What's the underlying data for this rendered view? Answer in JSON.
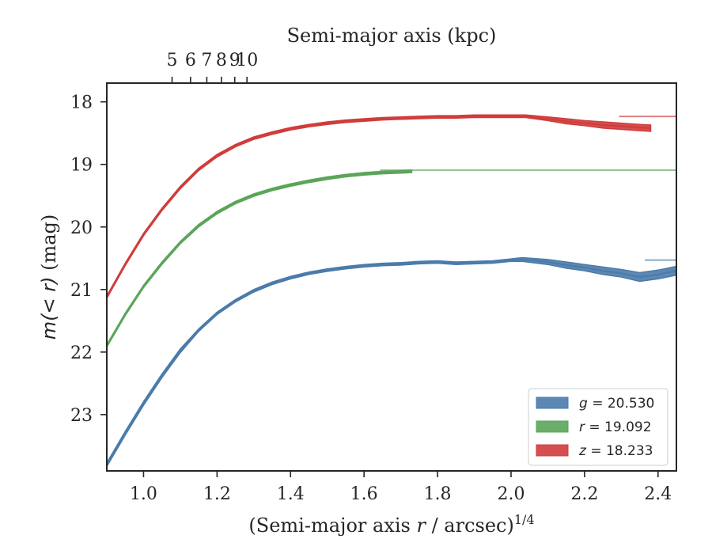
{
  "chart_data": {
    "type": "line",
    "xlabel": "(Semi-major axis r / arcsec)^1/4",
    "xlabel_parts": {
      "pre": "(Semi-major axis ",
      "var": "r",
      "mid": " / arcsec)",
      "sup": "1/4"
    },
    "ylabel": "m(< r) (mag)",
    "ylabel_parts": {
      "var": "m(< r)",
      "unit": " (mag)"
    },
    "top_xlabel": "Semi-major axis (kpc)",
    "xlim": [
      0.9,
      2.45
    ],
    "ylim": [
      23.9,
      17.7
    ],
    "y_inverted": true,
    "x_ticks": [
      "1.0",
      "1.2",
      "1.4",
      "1.6",
      "1.8",
      "2.0",
      "2.2",
      "2.4"
    ],
    "y_ticks": [
      "18",
      "19",
      "20",
      "21",
      "22",
      "23"
    ],
    "top_ticks": [
      "5",
      "6",
      "7",
      "8",
      "9",
      "10"
    ],
    "grid": false,
    "legend_position": "lower-right",
    "series": [
      {
        "name": "g = 20.530",
        "legend_var": "g",
        "legend_value": "20.530",
        "color": "#4a7bab",
        "asymptote": 20.53,
        "x": [
          0.9,
          0.95,
          1.0,
          1.05,
          1.1,
          1.15,
          1.2,
          1.25,
          1.3,
          1.35,
          1.4,
          1.45,
          1.5,
          1.55,
          1.6,
          1.65,
          1.7,
          1.75,
          1.8,
          1.85,
          1.9,
          1.95,
          2.0,
          2.03,
          2.1,
          2.15,
          2.2,
          2.25,
          2.3,
          2.35,
          2.4,
          2.45
        ],
        "y": [
          23.8,
          23.3,
          22.82,
          22.38,
          21.98,
          21.65,
          21.38,
          21.18,
          21.02,
          20.9,
          20.81,
          20.74,
          20.69,
          20.65,
          20.62,
          20.6,
          20.59,
          20.57,
          20.56,
          20.58,
          20.57,
          20.56,
          20.53,
          20.52,
          20.56,
          20.61,
          20.65,
          20.7,
          20.74,
          20.8,
          20.76,
          20.7
        ],
        "band_halfwidth": [
          0.03,
          0.03,
          0.03,
          0.03,
          0.03,
          0.02,
          0.02,
          0.02,
          0.02,
          0.02,
          0.02,
          0.02,
          0.02,
          0.02,
          0.02,
          0.02,
          0.02,
          0.02,
          0.02,
          0.02,
          0.02,
          0.02,
          0.02,
          0.03,
          0.04,
          0.05,
          0.05,
          0.06,
          0.06,
          0.07,
          0.07,
          0.07
        ]
      },
      {
        "name": "r = 19.092",
        "legend_var": "r",
        "legend_value": "19.092",
        "color": "#5aa55a",
        "asymptote": 19.092,
        "x": [
          0.9,
          0.95,
          1.0,
          1.05,
          1.1,
          1.15,
          1.2,
          1.25,
          1.3,
          1.35,
          1.4,
          1.45,
          1.5,
          1.55,
          1.6,
          1.65,
          1.7,
          1.73
        ],
        "y": [
          21.9,
          21.4,
          20.95,
          20.58,
          20.25,
          19.98,
          19.77,
          19.61,
          19.49,
          19.4,
          19.33,
          19.27,
          19.22,
          19.18,
          19.15,
          19.13,
          19.12,
          19.11
        ],
        "band_halfwidth": [
          0.02,
          0.02,
          0.02,
          0.02,
          0.02,
          0.02,
          0.02,
          0.02,
          0.02,
          0.02,
          0.02,
          0.02,
          0.02,
          0.02,
          0.02,
          0.02,
          0.02,
          0.02
        ]
      },
      {
        "name": "z = 18.233",
        "legend_var": "z",
        "legend_value": "18.233",
        "color": "#d03c3c",
        "asymptote": 18.233,
        "x": [
          0.9,
          0.95,
          1.0,
          1.05,
          1.1,
          1.15,
          1.2,
          1.25,
          1.3,
          1.35,
          1.4,
          1.45,
          1.5,
          1.55,
          1.6,
          1.65,
          1.7,
          1.75,
          1.8,
          1.85,
          1.9,
          1.95,
          2.0,
          2.04,
          2.1,
          2.15,
          2.2,
          2.25,
          2.3,
          2.35,
          2.38
        ],
        "y": [
          21.12,
          20.6,
          20.12,
          19.72,
          19.37,
          19.08,
          18.86,
          18.7,
          18.58,
          18.5,
          18.43,
          18.38,
          18.34,
          18.31,
          18.29,
          18.27,
          18.26,
          18.25,
          18.24,
          18.24,
          18.23,
          18.23,
          18.23,
          18.23,
          18.27,
          18.31,
          18.34,
          18.37,
          18.39,
          18.41,
          18.42
        ],
        "band_halfwidth": [
          0.02,
          0.02,
          0.02,
          0.02,
          0.02,
          0.02,
          0.02,
          0.02,
          0.02,
          0.02,
          0.02,
          0.02,
          0.02,
          0.02,
          0.02,
          0.02,
          0.02,
          0.02,
          0.02,
          0.02,
          0.02,
          0.02,
          0.02,
          0.02,
          0.03,
          0.04,
          0.04,
          0.05,
          0.05,
          0.05,
          0.05
        ]
      }
    ]
  }
}
